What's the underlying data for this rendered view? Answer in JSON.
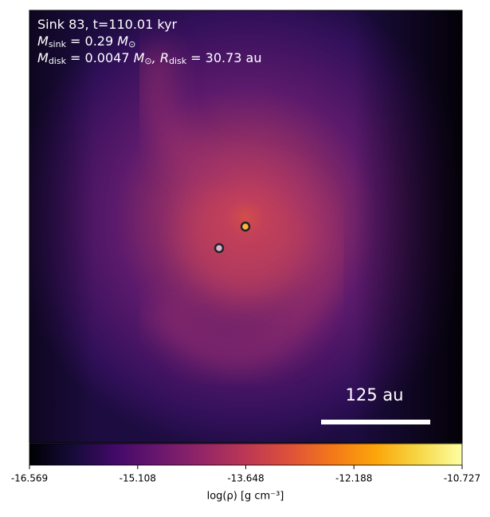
{
  "chart_data": {
    "type": "density-map",
    "info": [
      [
        "Sink 83, t=110.01 kyr"
      ],
      [
        "M",
        {
          "sub": "sink"
        },
        " = 0.29 ",
        "M",
        {
          "sub": "⊙"
        }
      ],
      [
        "M",
        {
          "sub": "disk"
        },
        " = 0.0047 ",
        "M",
        {
          "sub": "⊙"
        },
        ", R",
        {
          "sub": "disk"
        },
        " = 30.73 au"
      ]
    ],
    "scale_bar": "125 au",
    "colormap": "inferno",
    "colorbar": {
      "label": "log(ρ) [g cm⁻³]",
      "clim": [
        -16.569,
        -10.727
      ],
      "ticks": [
        -16.569,
        -15.108,
        -13.648,
        -12.188,
        -10.727
      ]
    }
  }
}
